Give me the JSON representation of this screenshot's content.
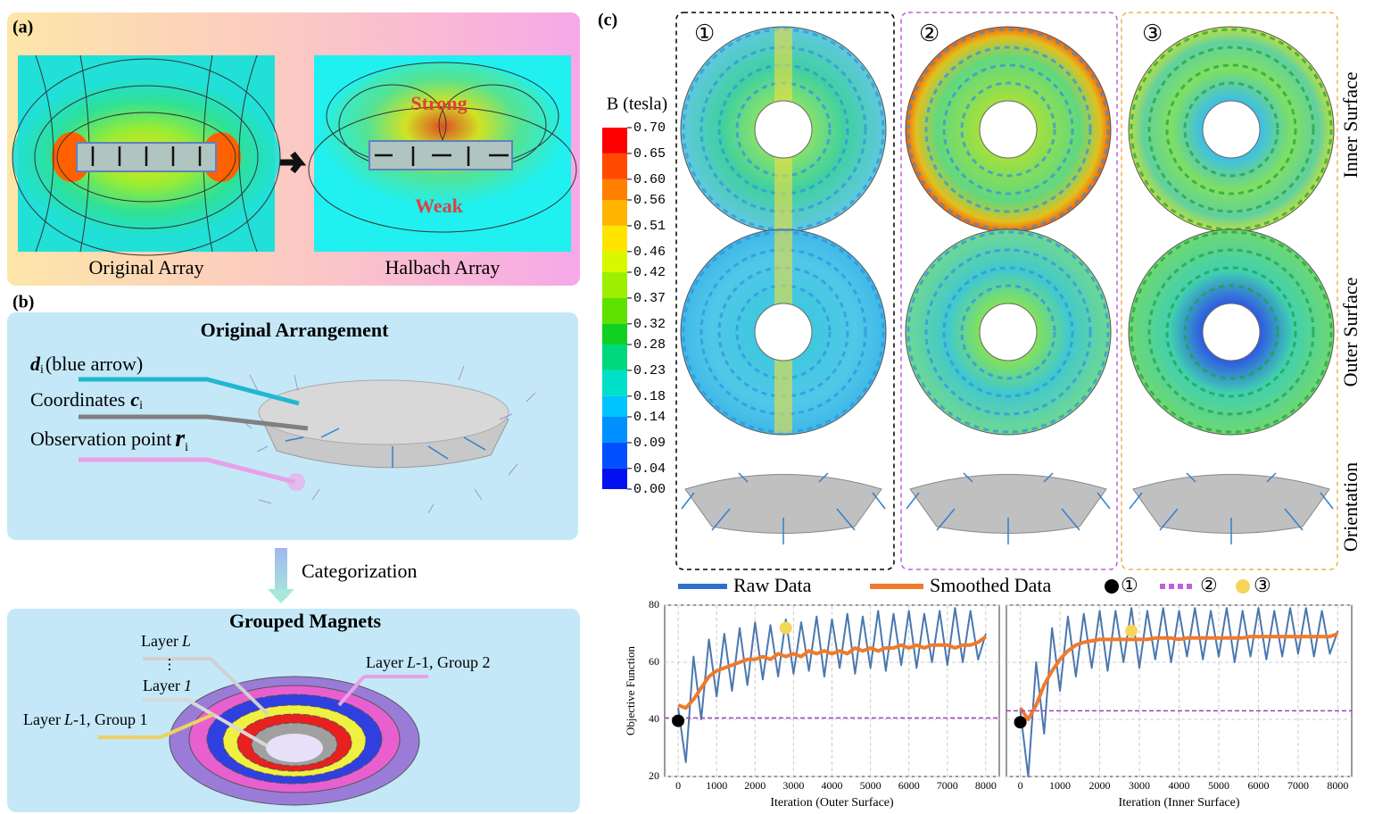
{
  "panel_a": {
    "tag": "(a)",
    "left_caption": "Original Array",
    "right_caption": "Halbach Array",
    "strong": "Strong",
    "weak": "Weak"
  },
  "panel_b": {
    "tag": "(b)",
    "title": "Original Arrangement",
    "d_label": {
      "symbol": "d",
      "sub": "i",
      "text": "(blue arrow)"
    },
    "c_label": {
      "text": "Coordinates",
      "symbol": "c",
      "sub": "i"
    },
    "r_label": {
      "text": "Observation point",
      "symbol": "r",
      "sub": "i"
    },
    "arrow_label": "Categorization",
    "grouped_title": "Grouped Magnets",
    "layer_top": {
      "text": "Layer",
      "symbol": "L"
    },
    "ellipsis": "⋮",
    "layer_bottom": {
      "text": "Layer",
      "symbol": "1"
    },
    "group2": {
      "text": "Layer",
      "symbol": "L",
      "rest": "-1, Group 2"
    },
    "group1": {
      "text": "Layer",
      "symbol": "L",
      "rest": "-1, Group 1"
    }
  },
  "panel_c": {
    "tag": "(c)",
    "columns": [
      {
        "label": "①"
      },
      {
        "label": "②"
      },
      {
        "label": "③"
      }
    ],
    "rows": [
      "Inner Surface",
      "Outer Surface",
      "Orientation"
    ],
    "colorbar": {
      "label": "B (tesla)",
      "ticks": [
        {
          "value": 0.7,
          "label": "0.70"
        },
        {
          "value": 0.65,
          "label": "0.65"
        },
        {
          "value": 0.6,
          "label": "0.60"
        },
        {
          "value": 0.56,
          "label": "0.56"
        },
        {
          "value": 0.51,
          "label": "0.51"
        },
        {
          "value": 0.46,
          "label": "0.46"
        },
        {
          "value": 0.42,
          "label": "0.42"
        },
        {
          "value": 0.37,
          "label": "0.37"
        },
        {
          "value": 0.32,
          "label": "0.32"
        },
        {
          "value": 0.28,
          "label": "0.28"
        },
        {
          "value": 0.23,
          "label": "0.23"
        },
        {
          "value": 0.18,
          "label": "0.18"
        },
        {
          "value": 0.14,
          "label": "0.14"
        },
        {
          "value": 0.09,
          "label": "0.09"
        },
        {
          "value": 0.04,
          "label": "0.04"
        },
        {
          "value": 0.0,
          "label": "0.00"
        }
      ],
      "colors": [
        "#ff0000",
        "#ff4a00",
        "#ff8000",
        "#ffb400",
        "#ffe400",
        "#d8f800",
        "#9cef00",
        "#5ee000",
        "#10d020",
        "#00d880",
        "#00e0c8",
        "#00c4ff",
        "#0090ff",
        "#0050ff",
        "#0010f0"
      ]
    },
    "legend": {
      "items": [
        {
          "label": "Raw Data",
          "color": "#2f6fd0",
          "style": "line"
        },
        {
          "label": "Smoothed Data",
          "color": "#f07a2a",
          "style": "line"
        },
        {
          "label": "①",
          "color": "#000000",
          "style": "dot"
        },
        {
          "label": "②",
          "color": "#c060e0",
          "style": "dash"
        },
        {
          "label": "③",
          "color": "#f5d55a",
          "style": "dot"
        }
      ]
    }
  },
  "chart_data": [
    {
      "type": "line",
      "xlabel": "Iteration (Outer Surface)",
      "ylabel": "Objective Function",
      "xlim": [
        -350,
        8350
      ],
      "ylim": [
        20,
        80
      ],
      "xticks": [
        0,
        1000,
        2000,
        3000,
        4000,
        5000,
        6000,
        7000,
        8000
      ],
      "yticks": [
        20,
        40,
        60,
        80
      ],
      "show_ytick_labels": true,
      "grid": true,
      "x": [
        0,
        200,
        400,
        600,
        800,
        1000,
        1200,
        1400,
        1600,
        1800,
        2000,
        2200,
        2400,
        2600,
        2800,
        3000,
        3200,
        3400,
        3600,
        3800,
        4000,
        4200,
        4400,
        4600,
        4800,
        5000,
        5200,
        5400,
        5600,
        5800,
        6000,
        6200,
        6400,
        6600,
        6800,
        7000,
        7200,
        7400,
        7600,
        7800,
        8000
      ],
      "series": [
        {
          "name": "Raw Data",
          "color": "#4a77b0",
          "values": [
            44,
            25,
            62,
            40,
            68,
            48,
            70,
            50,
            72,
            52,
            74,
            54,
            73,
            55,
            75,
            56,
            74,
            57,
            76,
            55,
            75,
            58,
            77,
            56,
            76,
            58,
            78,
            57,
            77,
            59,
            78,
            58,
            77,
            60,
            78,
            59,
            79,
            60,
            78,
            61,
            70
          ]
        },
        {
          "name": "Smoothed Data",
          "color": "#f07a2a",
          "values": [
            45,
            44,
            47,
            51,
            55,
            57,
            58,
            59,
            60,
            61,
            61,
            62,
            61,
            63,
            62,
            63,
            62,
            64,
            63,
            64,
            63,
            64,
            63,
            65,
            64,
            65,
            64,
            65,
            65,
            66,
            65,
            66,
            65,
            66,
            66,
            66,
            65,
            66,
            66,
            67,
            69
          ]
        }
      ],
      "reference_line": {
        "value": 40.5,
        "color": "#a040c0"
      },
      "points": [
        {
          "x": 0,
          "y": 39.5,
          "color": "#000000"
        },
        {
          "x": 2800,
          "y": 72,
          "color": "#f5d55a"
        }
      ]
    },
    {
      "type": "line",
      "xlabel": "Iteration (Inner Surface)",
      "xlim": [
        -350,
        8350
      ],
      "ylim": [
        20,
        80
      ],
      "xticks": [
        0,
        1000,
        2000,
        3000,
        4000,
        5000,
        6000,
        7000,
        8000
      ],
      "yticks": [
        20,
        40,
        60,
        80
      ],
      "show_ytick_labels": false,
      "grid": true,
      "x": [
        0,
        200,
        400,
        600,
        800,
        1000,
        1200,
        1400,
        1600,
        1800,
        2000,
        2200,
        2400,
        2600,
        2800,
        3000,
        3200,
        3400,
        3600,
        3800,
        4000,
        4200,
        4400,
        4600,
        4800,
        5000,
        5200,
        5400,
        5600,
        5800,
        6000,
        6200,
        6400,
        6600,
        6800,
        7000,
        7200,
        7400,
        7600,
        7800,
        8000
      ],
      "series": [
        {
          "name": "Raw Data",
          "color": "#4a77b0",
          "values": [
            43,
            20,
            60,
            35,
            72,
            50,
            76,
            55,
            77,
            58,
            78,
            57,
            78,
            60,
            79,
            58,
            78,
            61,
            79,
            60,
            78,
            62,
            79,
            61,
            78,
            62,
            79,
            60,
            78,
            62,
            79,
            61,
            78,
            62,
            79,
            63,
            79,
            62,
            78,
            63,
            71
          ]
        },
        {
          "name": "Smoothed Data",
          "color": "#f07a2a",
          "values": [
            44,
            40,
            45,
            52,
            57,
            61,
            64,
            66,
            67,
            67.5,
            68,
            68,
            68,
            68,
            68,
            68,
            68,
            68.5,
            68.5,
            68.5,
            68,
            68.5,
            68.5,
            68.5,
            68.5,
            68.5,
            68.5,
            68.5,
            68.5,
            69,
            69,
            69,
            69,
            69,
            69,
            69,
            69,
            69,
            69,
            69,
            70
          ]
        }
      ],
      "reference_line": {
        "value": 43,
        "color": "#a040c0"
      },
      "points": [
        {
          "x": 0,
          "y": 39,
          "color": "#000000"
        },
        {
          "x": 2800,
          "y": 71,
          "color": "#f5d55a"
        }
      ]
    }
  ]
}
